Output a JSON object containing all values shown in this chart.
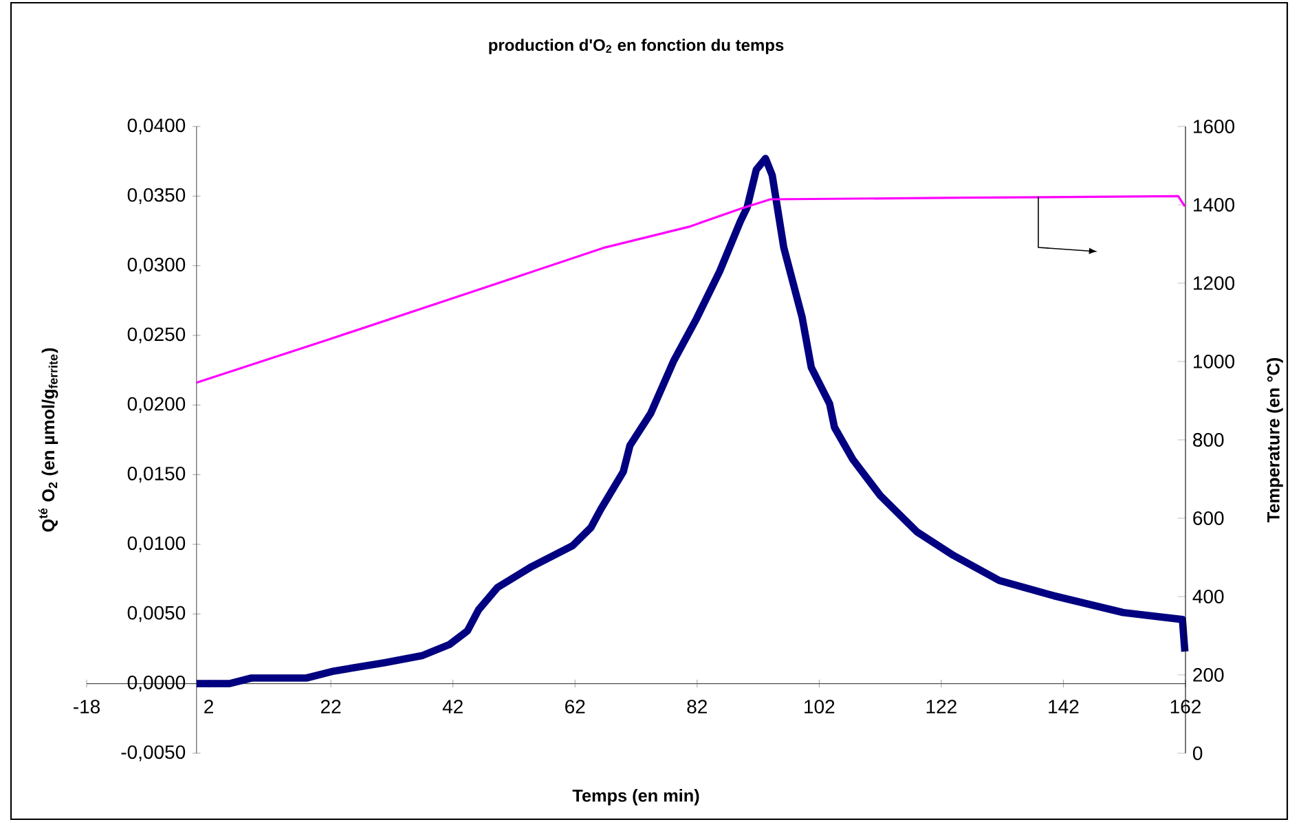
{
  "chart_data": {
    "type": "line",
    "title": "production d'O$_{2}$ en fonction du temps",
    "xlabel": "Temps (en min)",
    "ylabel": "Q$^{té}$ O$_{2}$ (en µmol/g$_{ferrite}$)",
    "y2label": "Temperature (en °C)",
    "xlim": [
      -18,
      162
    ],
    "xticks": [
      -18,
      2,
      22,
      42,
      62,
      82,
      102,
      122,
      142,
      162
    ],
    "ylim": [
      -0.005,
      0.04
    ],
    "yticks": [
      {
        "value": -0.005,
        "label": "-0,0050"
      },
      {
        "value": 0,
        "label": "0,0000"
      },
      {
        "value": 0.005,
        "label": "0,0050"
      },
      {
        "value": 0.01,
        "label": "0,0100"
      },
      {
        "value": 0.015,
        "label": "0,0150"
      },
      {
        "value": 0.02,
        "label": "0,0200"
      },
      {
        "value": 0.025,
        "label": "0,0250"
      },
      {
        "value": 0.03,
        "label": "0,0300"
      },
      {
        "value": 0.035,
        "label": "0,0350"
      },
      {
        "value": 0.04,
        "label": "0,0400"
      }
    ],
    "y2lim": [
      0,
      1600
    ],
    "y2ticks": [
      0,
      200,
      400,
      600,
      800,
      1000,
      1200,
      1400,
      1600
    ],
    "series": [
      {
        "color": "#000080",
        "x": [
          0,
          5.4,
          9,
          18,
          22.5,
          30.8,
          36.9,
          41.4,
          44.4,
          46.2,
          49.3,
          54.9,
          61.6,
          64.6,
          66.2,
          69.9,
          71.0,
          74.4,
          78.2,
          81.9,
          85.7,
          89.1,
          90.2,
          91.7,
          93.2,
          94.3,
          96.2,
          99.2,
          100.7,
          103.7,
          104.5,
          107.5,
          112.0,
          118.0,
          124.0,
          131.5,
          140.5,
          151.8,
          161.5,
          161.9
        ],
        "values": [
          0,
          0,
          0.0004,
          0.0004,
          0.0009,
          0.0015,
          0.002,
          0.0028,
          0.0038,
          0.0053,
          0.0069,
          0.0084,
          0.0099,
          0.0112,
          0.0125,
          0.0152,
          0.0171,
          0.0194,
          0.0232,
          0.0262,
          0.0296,
          0.0332,
          0.0342,
          0.0369,
          0.0377,
          0.0365,
          0.0313,
          0.0263,
          0.0227,
          0.0201,
          0.0184,
          0.0161,
          0.0135,
          0.0109,
          0.0092,
          0.0074,
          0.0063,
          0.0051,
          0.0046,
          0.0023
        ]
      },
      {
        "color": "#ff00ff",
        "axis": "y2",
        "x": [
          0,
          21.8,
          44.4,
          66.9,
          80.7,
          89.1,
          94.0,
          125.5,
          160.8,
          161.9
        ],
        "values": [
          946,
          1057,
          1174,
          1291,
          1344,
          1390,
          1414,
          1418,
          1422,
          1396
        ]
      }
    ]
  }
}
